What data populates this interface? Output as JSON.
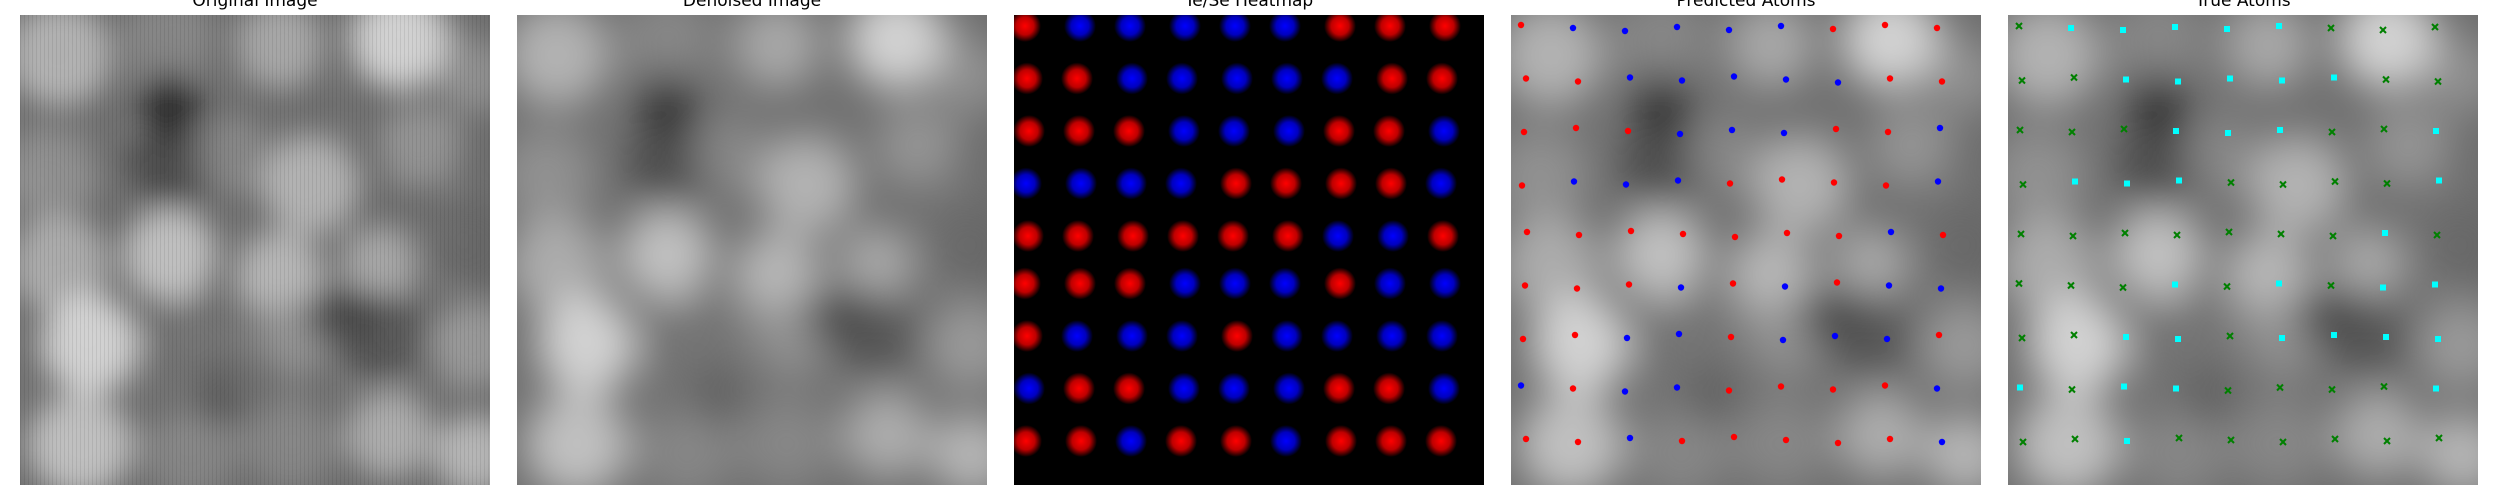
{
  "figure": {
    "panels": [
      {
        "key": "original",
        "title": "Original Image"
      },
      {
        "key": "denoised",
        "title": "Denoised Image"
      },
      {
        "key": "heatmap",
        "title": "Te/Se Heatmap"
      },
      {
        "key": "predicted",
        "title": "Predicted Atoms"
      },
      {
        "key": "true",
        "title": "True Atoms"
      }
    ],
    "colors": {
      "grayscale_low": "#000000",
      "grayscale_high": "#ffffff",
      "heatmap_te": "#ff0000",
      "heatmap_se": "#0000ff",
      "predicted_te": "#ff0000",
      "predicted_se": "#0000ff",
      "true_te": "#00ffff",
      "true_se": "#008000"
    },
    "marker_types": {
      "predicted": "dot",
      "true_te": "square",
      "true_se": "x"
    }
  },
  "atom_grid": {
    "rows": 9,
    "cols": 9,
    "heatmap": [
      [
        "R",
        "B",
        "B",
        "B",
        "B",
        "B",
        "R",
        "R",
        "R"
      ],
      [
        "R",
        "R",
        "B",
        "B",
        "B",
        "B",
        "B",
        "R",
        "R"
      ],
      [
        "R",
        "R",
        "R",
        "B",
        "B",
        "B",
        "R",
        "R",
        "B"
      ],
      [
        "B",
        "B",
        "B",
        "B",
        "R",
        "R",
        "R",
        "R",
        "B"
      ],
      [
        "R",
        "R",
        "R",
        "R",
        "R",
        "R",
        "B",
        "B",
        "R"
      ],
      [
        "R",
        "R",
        "R",
        "B",
        "B",
        "B",
        "R",
        "B",
        "B"
      ],
      [
        "R",
        "B",
        "B",
        "B",
        "R",
        "B",
        "B",
        "B",
        "B"
      ],
      [
        "B",
        "R",
        "R",
        "B",
        "B",
        "B",
        "R",
        "R",
        "B"
      ],
      [
        "R",
        "R",
        "B",
        "R",
        "R",
        "B",
        "R",
        "R",
        "R"
      ]
    ],
    "predicted": [
      [
        "R",
        "B",
        "B",
        "B",
        "B",
        "B",
        "R",
        "R",
        "R"
      ],
      [
        "R",
        "R",
        "B",
        "B",
        "B",
        "B",
        "B",
        "R",
        "R"
      ],
      [
        "R",
        "R",
        "R",
        "B",
        "B",
        "B",
        "R",
        "R",
        "B"
      ],
      [
        "R",
        "B",
        "B",
        "B",
        "R",
        "R",
        "R",
        "R",
        "B"
      ],
      [
        "R",
        "R",
        "R",
        "R",
        "R",
        "R",
        "R",
        "B",
        "R"
      ],
      [
        "R",
        "R",
        "R",
        "B",
        "R",
        "B",
        "R",
        "B",
        "B"
      ],
      [
        "R",
        "R",
        "B",
        "B",
        "R",
        "B",
        "B",
        "B",
        "R"
      ],
      [
        "B",
        "R",
        "B",
        "B",
        "R",
        "R",
        "R",
        "R",
        "B"
      ],
      [
        "R",
        "R",
        "B",
        "R",
        "R",
        "R",
        "R",
        "R",
        "B"
      ]
    ],
    "true": [
      [
        "G",
        "C",
        "C",
        "C",
        "C",
        "C",
        "G",
        "G",
        "G"
      ],
      [
        "G",
        "G",
        "C",
        "C",
        "C",
        "C",
        "C",
        "G",
        "G"
      ],
      [
        "G",
        "G",
        "G",
        "C",
        "C",
        "C",
        "G",
        "G",
        "C"
      ],
      [
        "G",
        "C",
        "C",
        "C",
        "G",
        "G",
        "G",
        "G",
        "C"
      ],
      [
        "G",
        "G",
        "G",
        "G",
        "G",
        "G",
        "G",
        "C",
        "G"
      ],
      [
        "G",
        "G",
        "G",
        "C",
        "G",
        "C",
        "G",
        "C",
        "C"
      ],
      [
        "G",
        "G",
        "C",
        "C",
        "G",
        "C",
        "C",
        "C",
        "C"
      ],
      [
        "C",
        "G",
        "C",
        "C",
        "G",
        "G",
        "G",
        "G",
        "C"
      ],
      [
        "G",
        "G",
        "C",
        "G",
        "G",
        "G",
        "G",
        "G",
        "G"
      ]
    ]
  }
}
